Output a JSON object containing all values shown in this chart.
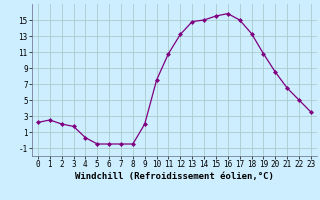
{
  "x": [
    0,
    1,
    2,
    3,
    4,
    5,
    6,
    7,
    8,
    9,
    10,
    11,
    12,
    13,
    14,
    15,
    16,
    17,
    18,
    19,
    20,
    21,
    22,
    23
  ],
  "y": [
    2.2,
    2.5,
    2.0,
    1.7,
    0.3,
    -0.5,
    -0.5,
    -0.5,
    -0.5,
    2.0,
    7.5,
    10.8,
    13.2,
    14.8,
    15.0,
    15.5,
    15.8,
    15.0,
    13.3,
    10.8,
    8.5,
    6.5,
    5.0,
    3.5
  ],
  "line_color": "#800080",
  "marker": "D",
  "marker_size": 2,
  "bg_color": "#cceeff",
  "grid_color": "#aacccc",
  "xlabel": "Windchill (Refroidissement éolien,°C)",
  "ylim": [
    -2,
    17
  ],
  "xlim": [
    -0.5,
    23.5
  ],
  "yticks": [
    -1,
    1,
    3,
    5,
    7,
    9,
    11,
    13,
    15
  ],
  "xticks": [
    0,
    1,
    2,
    3,
    4,
    5,
    6,
    7,
    8,
    9,
    10,
    11,
    12,
    13,
    14,
    15,
    16,
    17,
    18,
    19,
    20,
    21,
    22,
    23
  ],
  "tick_fontsize": 5.5,
  "xlabel_fontsize": 6.5
}
